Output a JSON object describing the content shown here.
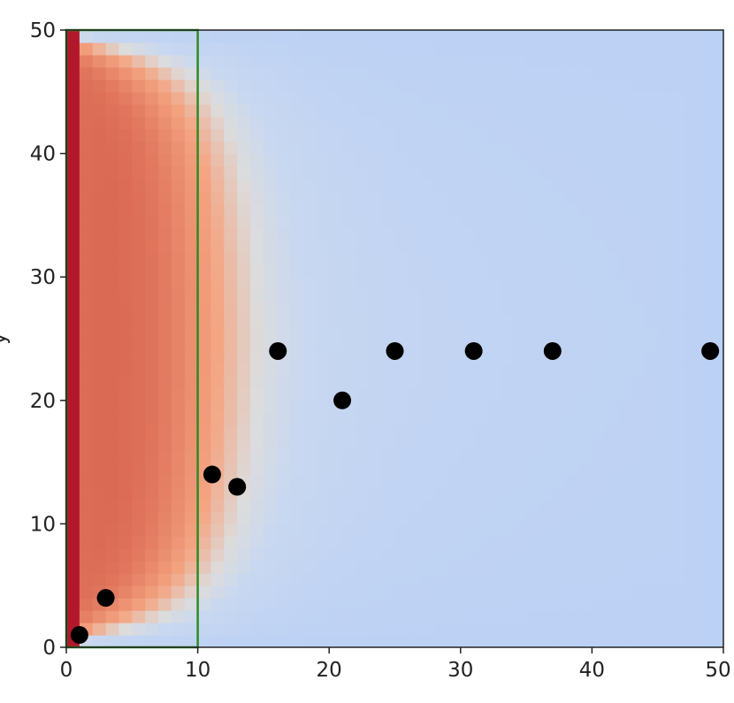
{
  "chart_data": {
    "type": "heatmap",
    "title": "",
    "xlabel": "",
    "ylabel": "y",
    "xlim": [
      0,
      50
    ],
    "ylim": [
      0,
      50
    ],
    "xticks": [
      0,
      10,
      20,
      30,
      40,
      50
    ],
    "yticks": [
      0,
      10,
      20,
      30,
      40,
      50
    ],
    "xtick_labels": [
      "0",
      "10",
      "20",
      "30",
      "40",
      "50"
    ],
    "ytick_labels": [
      "0",
      "10",
      "20",
      "30",
      "40",
      "50"
    ],
    "grid": false,
    "legend": "none",
    "colormap": "coolwarm",
    "colors": {
      "cold": "#b5cdf7",
      "neutral": "#dcdcdc",
      "warm": "#f4a582",
      "hot": "#d6604d",
      "edge": "#b2182b",
      "region": "#2e8b22",
      "points": "#000000"
    },
    "region": {
      "x": [
        0,
        10
      ],
      "y": [
        0,
        50
      ]
    },
    "scatter": {
      "x": [
        1,
        3,
        11.1,
        13,
        16.1,
        21,
        25,
        31,
        37,
        49
      ],
      "y": [
        1,
        4,
        14,
        13,
        24,
        20,
        24,
        24,
        24,
        24
      ]
    }
  }
}
